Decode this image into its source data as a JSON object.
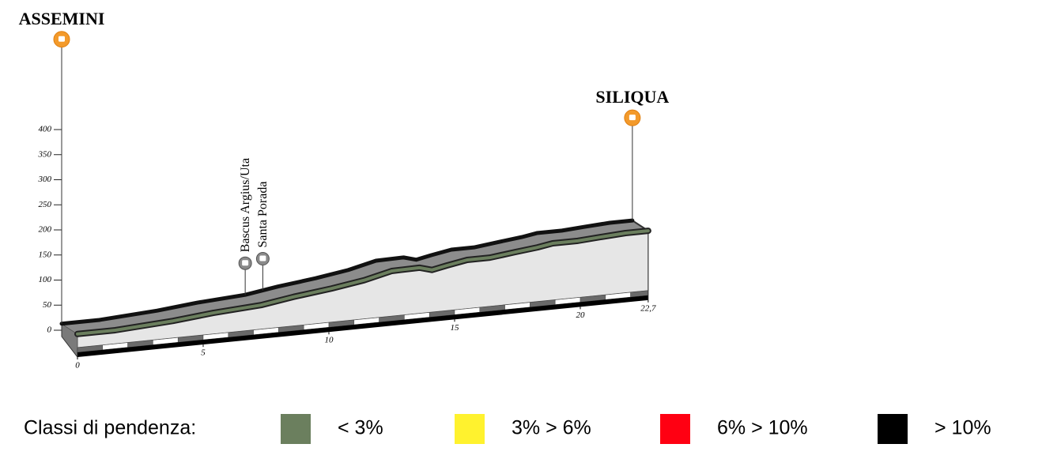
{
  "chart_data": {
    "type": "line",
    "x": [
      0,
      1.5,
      3.8,
      5.4,
      7.3,
      8.6,
      10.1,
      11.4,
      12.5,
      13.6,
      14.1,
      14.7,
      15.5,
      16.4,
      17.4,
      18.3,
      18.9,
      19.9,
      20.8,
      21.8,
      22.7
    ],
    "values": [
      13,
      13,
      20,
      28,
      34,
      44,
      53,
      63,
      76,
      77,
      70,
      76,
      83,
      83,
      89,
      94,
      99,
      99,
      102,
      105,
      105
    ],
    "color": "#6b7f5e",
    "xlim": [
      0,
      22.7
    ],
    "xticks": [
      0,
      5,
      10,
      15,
      20,
      {
        "value": 22.7,
        "label": "22,7"
      }
    ],
    "ylim": [
      0,
      400
    ],
    "yticks": [
      0,
      50,
      100,
      150,
      200,
      250,
      300,
      350,
      400
    ],
    "places": [
      {
        "name": "ASSEMINI",
        "km": 0
      },
      {
        "name": "Bascus Argius/Uta",
        "km": 7.3
      },
      {
        "name": "Santa Porada",
        "km": 8.0
      },
      {
        "name": "SILIQUA",
        "km": 22.7
      }
    ],
    "legend": {
      "title": "Classi di pendenza:",
      "items": [
        {
          "label": "< 3%",
          "color": "#6b7f5e"
        },
        {
          "label": "3% > 6%",
          "color": "#fff22e"
        },
        {
          "label": "6% > 10%",
          "color": "#ff0012"
        },
        {
          "label": "> 10%",
          "color": "#000000"
        }
      ]
    }
  }
}
